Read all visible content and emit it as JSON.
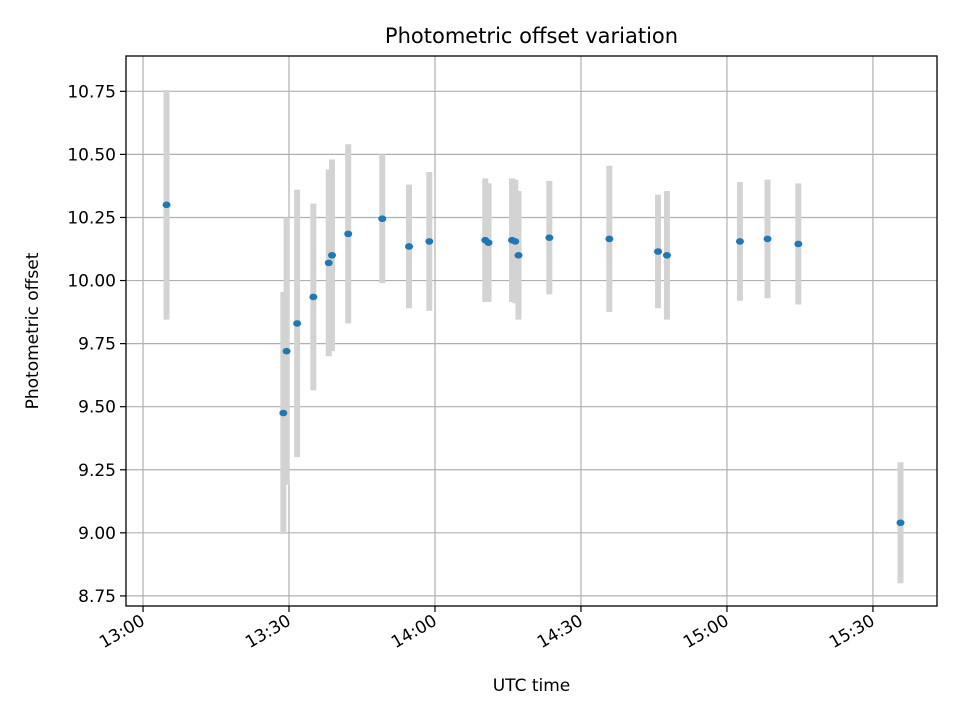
{
  "chart_data": {
    "type": "scatter",
    "title": "Photometric offset variation",
    "xlabel": "UTC time",
    "ylabel": "Photometric offset",
    "x_ticks": [
      "13:00",
      "13:30",
      "14:00",
      "14:30",
      "15:00",
      "15:30"
    ],
    "y_ticks": [
      "8.75",
      "9.00",
      "9.25",
      "9.50",
      "9.75",
      "10.00",
      "10.25",
      "10.50",
      "10.75"
    ],
    "xlim": [
      "12:56:30",
      "15:43:10"
    ],
    "ylim": [
      8.71,
      10.89
    ],
    "grid": true,
    "colors": {
      "points": "#1f77b4",
      "errorbars": "#d3d3d3",
      "grid": "#b0b0b0"
    },
    "points": [
      {
        "x": "13:04:50",
        "y": 10.3,
        "err": 0.455
      },
      {
        "x": "13:28:50",
        "y": 9.475,
        "err": 0.48
      },
      {
        "x": "13:29:30",
        "y": 9.72,
        "err": 0.53
      },
      {
        "x": "13:31:40",
        "y": 9.83,
        "err": 0.53
      },
      {
        "x": "13:35:00",
        "y": 9.935,
        "err": 0.37
      },
      {
        "x": "13:38:10",
        "y": 10.07,
        "err": 0.37
      },
      {
        "x": "13:38:50",
        "y": 10.1,
        "err": 0.38
      },
      {
        "x": "13:42:10",
        "y": 10.185,
        "err": 0.355
      },
      {
        "x": "13:49:10",
        "y": 10.245,
        "err": 0.255
      },
      {
        "x": "13:54:40",
        "y": 10.135,
        "err": 0.245
      },
      {
        "x": "13:58:50",
        "y": 10.155,
        "err": 0.275
      },
      {
        "x": "14:10:20",
        "y": 10.16,
        "err": 0.245
      },
      {
        "x": "14:11:00",
        "y": 10.15,
        "err": 0.235
      },
      {
        "x": "14:15:50",
        "y": 10.16,
        "err": 0.245
      },
      {
        "x": "14:16:30",
        "y": 10.155,
        "err": 0.245
      },
      {
        "x": "14:17:10",
        "y": 10.1,
        "err": 0.255
      },
      {
        "x": "14:23:30",
        "y": 10.17,
        "err": 0.225
      },
      {
        "x": "14:35:50",
        "y": 10.165,
        "err": 0.29
      },
      {
        "x": "14:45:50",
        "y": 10.115,
        "err": 0.225
      },
      {
        "x": "14:47:40",
        "y": 10.1,
        "err": 0.255
      },
      {
        "x": "15:02:40",
        "y": 10.155,
        "err": 0.235
      },
      {
        "x": "15:08:20",
        "y": 10.165,
        "err": 0.235
      },
      {
        "x": "15:14:40",
        "y": 10.145,
        "err": 0.24
      },
      {
        "x": "15:35:40",
        "y": 9.04,
        "err": 0.24
      }
    ]
  }
}
